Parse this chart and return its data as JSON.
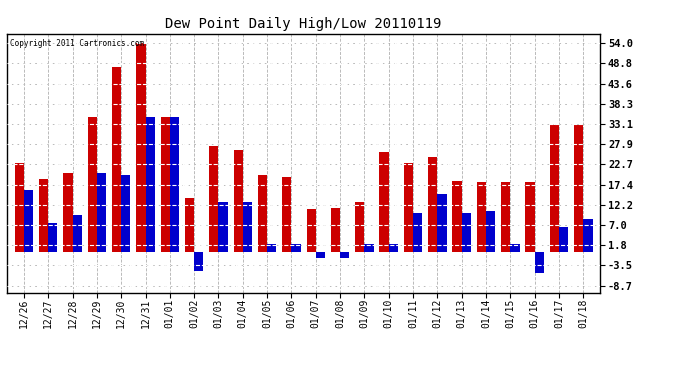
{
  "title": "Dew Point Daily High/Low 20110119",
  "copyright": "Copyright 2011 Cartronics.com",
  "dates": [
    "12/26",
    "12/27",
    "12/28",
    "12/29",
    "12/30",
    "12/31",
    "01/01",
    "01/02",
    "01/03",
    "01/04",
    "01/05",
    "01/06",
    "01/07",
    "01/08",
    "01/09",
    "01/10",
    "01/11",
    "01/12",
    "01/13",
    "01/14",
    "01/15",
    "01/16",
    "01/17",
    "01/18"
  ],
  "highs": [
    23.0,
    19.0,
    20.5,
    35.0,
    48.0,
    54.0,
    35.0,
    14.0,
    27.5,
    26.5,
    20.0,
    19.5,
    11.0,
    11.5,
    13.0,
    26.0,
    23.0,
    24.5,
    18.5,
    18.0,
    18.0,
    18.0,
    33.0,
    33.0
  ],
  "lows": [
    16.0,
    7.5,
    9.5,
    20.5,
    20.0,
    35.0,
    35.0,
    -5.0,
    13.0,
    13.0,
    2.0,
    2.0,
    -1.5,
    -1.5,
    2.0,
    2.0,
    10.0,
    15.0,
    10.0,
    10.5,
    2.0,
    -5.5,
    6.5,
    8.5
  ],
  "bar_color_high": "#cc0000",
  "bar_color_low": "#0000cc",
  "background_color": "#ffffff",
  "grid_color": "#b0b0b0",
  "yticks": [
    54.0,
    48.8,
    43.6,
    38.3,
    33.1,
    27.9,
    22.7,
    17.4,
    12.2,
    7.0,
    1.8,
    -3.5,
    -8.7
  ],
  "ylim": [
    -10.5,
    56.5
  ],
  "bar_width": 0.38
}
